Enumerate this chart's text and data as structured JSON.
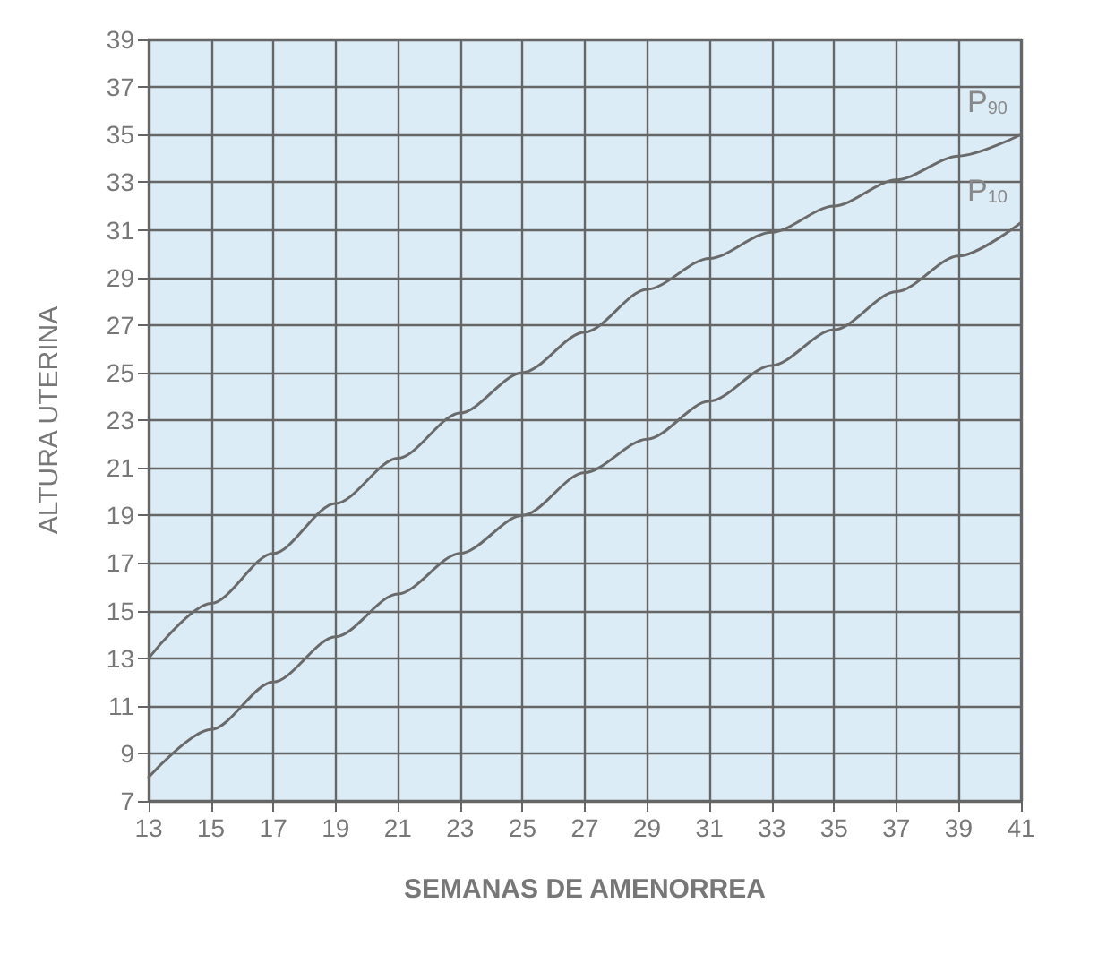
{
  "chart_data": {
    "type": "line",
    "xlabel": "SEMANAS DE AMENORREA",
    "ylabel": "ALTURA UTERINA",
    "x": [
      13,
      15,
      17,
      19,
      21,
      23,
      25,
      27,
      29,
      31,
      33,
      35,
      37,
      39,
      41
    ],
    "series": [
      {
        "name": "P$_{90}$",
        "color": "#6a6a6a",
        "values": [
          13,
          15.3,
          17.4,
          19.5,
          21.4,
          23.3,
          25,
          26.7,
          28.5,
          29.8,
          30.9,
          32,
          33.1,
          34.1,
          35
        ]
      },
      {
        "name": "P$_{10}$",
        "color": "#6a6a6a",
        "values": [
          8,
          10,
          12,
          13.9,
          15.7,
          17.4,
          19,
          20.8,
          22.2,
          23.8,
          25.3,
          26.8,
          28.4,
          29.9,
          31.3
        ]
      }
    ],
    "xlim": [
      13,
      41
    ],
    "xticks": [
      13,
      15,
      17,
      19,
      21,
      23,
      25,
      27,
      29,
      31,
      33,
      35,
      37,
      39,
      41
    ],
    "ylim": [
      7,
      39
    ],
    "yticks": [
      7,
      9,
      11,
      13,
      15,
      17,
      19,
      21,
      23,
      25,
      27,
      29,
      31,
      33,
      35,
      37,
      39
    ],
    "grid": true,
    "legend": false,
    "marker": "none",
    "line_style": "solid"
  }
}
